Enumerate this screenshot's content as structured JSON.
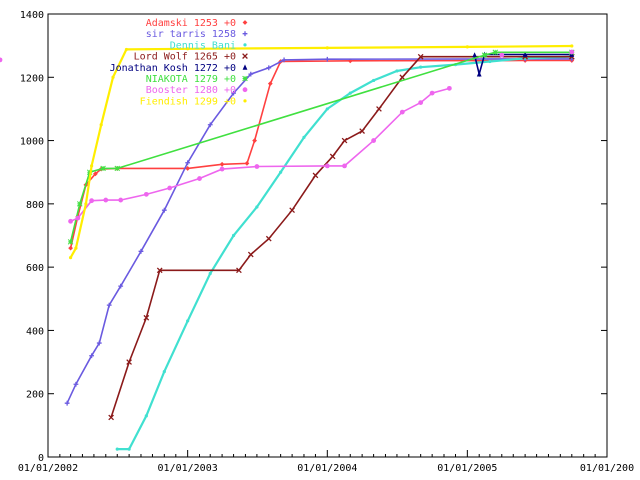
{
  "chart_data": {
    "type": "line",
    "title": "",
    "xlabel": "",
    "ylabel": "",
    "x_axis": {
      "type": "date",
      "range": [
        "2002-01-01",
        "2006-01-01"
      ],
      "tick_labels": [
        "01/01/2002",
        "01/01/2003",
        "01/01/2004",
        "01/01/2005",
        "01/01/200"
      ]
    },
    "ylim": [
      0,
      1400
    ],
    "y_tick_labels": [
      "0",
      "200",
      "400",
      "600",
      "800",
      "1000",
      "1200",
      "1400"
    ],
    "y_ticks": [
      0,
      200,
      400,
      600,
      800,
      1000,
      1200,
      1400
    ],
    "grid": false,
    "legend_placement": "top-left inside",
    "series": [
      {
        "name": "Adamski 1253 +0",
        "color": "#ff4040",
        "marker": "diamond",
        "points": [
          [
            "2002-03-01",
            660
          ],
          [
            "2002-03-20",
            760
          ],
          [
            "2002-04-10",
            860
          ],
          [
            "2002-05-05",
            895
          ],
          [
            "2002-05-20",
            910
          ],
          [
            "2002-07-01",
            912
          ],
          [
            "2003-01-01",
            912
          ],
          [
            "2003-04-01",
            925
          ],
          [
            "2003-06-05",
            928
          ],
          [
            "2003-06-25",
            1000
          ],
          [
            "2003-08-05",
            1180
          ],
          [
            "2003-09-01",
            1250
          ],
          [
            "2004-03-01",
            1252
          ],
          [
            "2005-06-01",
            1253
          ],
          [
            "2005-10-01",
            1253
          ]
        ]
      },
      {
        "name": "sir tarris 1258",
        "color": "#6a5ae0",
        "marker": "plus",
        "points": [
          [
            "2002-02-20",
            170
          ],
          [
            "2002-03-15",
            230
          ],
          [
            "2002-04-25",
            320
          ],
          [
            "2002-05-15",
            360
          ],
          [
            "2002-06-10",
            480
          ],
          [
            "2002-07-10",
            540
          ],
          [
            "2002-09-01",
            650
          ],
          [
            "2002-11-01",
            780
          ],
          [
            "2003-01-01",
            930
          ],
          [
            "2003-03-01",
            1050
          ],
          [
            "2003-05-01",
            1150
          ],
          [
            "2003-06-15",
            1210
          ],
          [
            "2003-08-01",
            1230
          ],
          [
            "2003-09-10",
            1255
          ],
          [
            "2004-01-01",
            1257
          ],
          [
            "2005-06-01",
            1258
          ],
          [
            "2005-10-01",
            1258
          ]
        ]
      },
      {
        "name": "Dennis Bani",
        "color": "#40e0d0",
        "marker": "dot",
        "points": [
          [
            "2002-07-01",
            25
          ],
          [
            "2002-08-01",
            25
          ],
          [
            "2002-09-15",
            130
          ],
          [
            "2002-11-01",
            270
          ],
          [
            "2003-01-01",
            430
          ],
          [
            "2003-03-01",
            580
          ],
          [
            "2003-05-01",
            700
          ],
          [
            "2003-07-01",
            790
          ],
          [
            "2003-09-01",
            900
          ],
          [
            "2003-11-01",
            1010
          ],
          [
            "2004-01-01",
            1100
          ],
          [
            "2004-03-01",
            1150
          ],
          [
            "2004-05-01",
            1190
          ],
          [
            "2004-07-01",
            1220
          ],
          [
            "2004-09-01",
            1232
          ],
          [
            "2004-12-01",
            1240
          ],
          [
            "2005-03-01",
            1250
          ],
          [
            "2005-06-01",
            1260
          ],
          [
            "2005-10-01",
            1265
          ]
        ]
      },
      {
        "name": "Lord Wolf 1265 +0",
        "color": "#8b1a1a",
        "marker": "cross",
        "points": [
          [
            "2002-06-15",
            125
          ],
          [
            "2002-08-01",
            300
          ],
          [
            "2002-09-15",
            440
          ],
          [
            "2002-10-20",
            590
          ],
          [
            "2003-05-15",
            590
          ],
          [
            "2003-06-15",
            640
          ],
          [
            "2003-08-01",
            690
          ],
          [
            "2003-10-01",
            780
          ],
          [
            "2003-12-01",
            890
          ],
          [
            "2004-01-15",
            950
          ],
          [
            "2004-02-15",
            1000
          ],
          [
            "2004-04-01",
            1030
          ],
          [
            "2004-05-15",
            1100
          ],
          [
            "2004-07-15",
            1200
          ],
          [
            "2004-09-01",
            1265
          ],
          [
            "2005-06-01",
            1265
          ],
          [
            "2005-10-01",
            1265
          ]
        ]
      },
      {
        "name": "Jonathan Kosh 1272 +0",
        "color": "#000080",
        "marker": "triangle",
        "points": [
          [
            "2005-01-20",
            1270
          ],
          [
            "2005-02-01",
            1210
          ],
          [
            "2005-02-15",
            1272
          ],
          [
            "2005-06-01",
            1272
          ],
          [
            "2005-10-01",
            1272
          ]
        ]
      },
      {
        "name": "NIAKOTA 1279 +0",
        "color": "#40e040",
        "marker": "asterisk",
        "points": [
          [
            "2002-03-01",
            680
          ],
          [
            "2002-03-25",
            800
          ],
          [
            "2002-04-20",
            900
          ],
          [
            "2002-05-25",
            912
          ],
          [
            "2002-07-01",
            912
          ],
          [
            "2005-02-15",
            1270
          ],
          [
            "2005-03-15",
            1279
          ],
          [
            "2005-10-01",
            1279
          ]
        ]
      },
      {
        "name": "Booster 1280 +0",
        "color": "#ee66ee",
        "marker": "circle",
        "points": [
          [
            "2002-03-01",
            745
          ],
          [
            "2002-03-20",
            755
          ],
          [
            "2002-04-25",
            810
          ],
          [
            "2002-06-01",
            812
          ],
          [
            "2002-07-10",
            812
          ],
          [
            "2002-09-15",
            830
          ],
          [
            "2002-11-15",
            850
          ],
          [
            "2003-02-01",
            880
          ],
          [
            "2003-04-01",
            910
          ],
          [
            "2003-07-01",
            918
          ],
          [
            "2004-01-01",
            920
          ],
          [
            "2004-02-15",
            920
          ],
          [
            "2004-05-01",
            1000
          ],
          [
            "2004-07-15",
            1090
          ],
          [
            "2004-09-01",
            1120
          ],
          [
            "2004-10-01",
            1150
          ],
          [
            "2004-11-15",
            1165
          ],
          [
            "2005-01-01],[\"2005-02-01",
            1255
          ],
          [
            "2005-04-01",
            1270
          ],
          [
            "2005-10-01",
            1280
          ]
        ]
      },
      {
        "name": "Fiendish 1299 +0",
        "color": "#ffee00",
        "marker": "dot",
        "points": [
          [
            "2002-03-01",
            630
          ],
          [
            "2002-03-15",
            660
          ],
          [
            "2002-04-10",
            800
          ],
          [
            "2002-04-25",
            920
          ],
          [
            "2002-05-20",
            1050
          ],
          [
            "2002-06-20",
            1200
          ],
          [
            "2002-07-25",
            1288
          ],
          [
            "2003-01-01",
            1290
          ],
          [
            "2004-01-01",
            1293
          ],
          [
            "2005-01-01",
            1296
          ],
          [
            "2005-10-01",
            1299
          ]
        ]
      }
    ]
  }
}
